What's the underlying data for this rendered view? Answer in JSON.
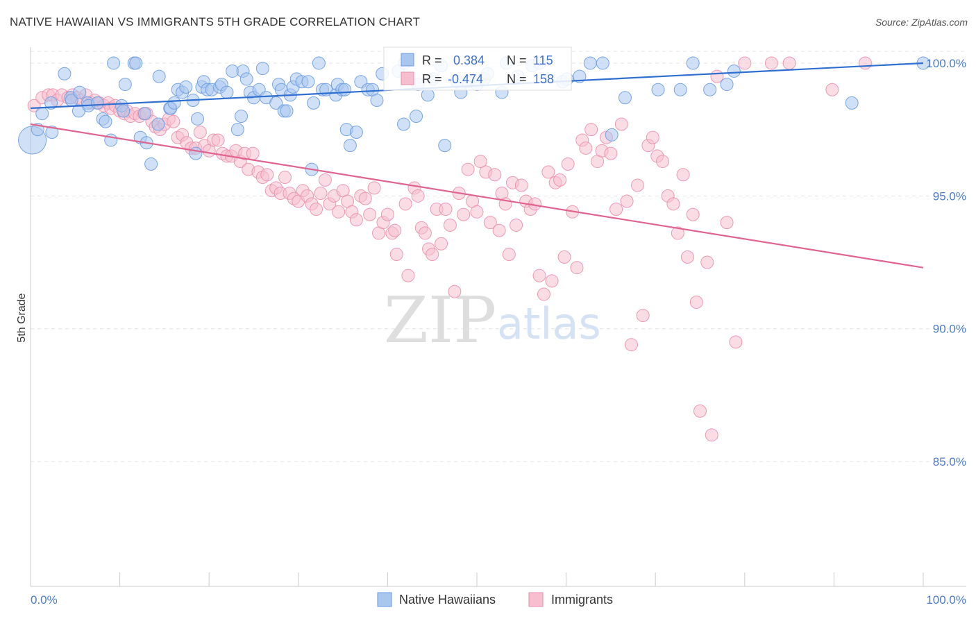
{
  "title": "NATIVE HAWAIIAN VS IMMIGRANTS 5TH GRADE CORRELATION CHART",
  "source": "Source: ZipAtlas.com",
  "watermark": {
    "part1": "ZIP",
    "part2": "atlas"
  },
  "legend_box": {
    "rows": [
      {
        "r_label": "R =",
        "r_value": "0.384",
        "n_label": "N =",
        "n_value": "115",
        "color": "#a9c6ee",
        "stroke": "#6b9be0"
      },
      {
        "r_label": "R =",
        "r_value": "-0.474",
        "n_label": "N =",
        "n_value": "158",
        "color": "#f6bfd0",
        "stroke": "#ea8fad"
      }
    ]
  },
  "bottom_legend": [
    {
      "label": "Native Hawaiians",
      "color": "#a9c6ee",
      "stroke": "#6b9be0"
    },
    {
      "label": "Immigrants",
      "color": "#f6bfd0",
      "stroke": "#ea8fad"
    }
  ],
  "chart_data": {
    "type": "scatter",
    "title": "NATIVE HAWAIIAN VS IMMIGRANTS 5TH GRADE CORRELATION CHART",
    "xlabel": "",
    "ylabel": "5th Grade",
    "xlim": [
      0,
      100
    ],
    "ylim": [
      80.3,
      100.6
    ],
    "x_tick_labels": [
      "0.0%",
      "100.0%"
    ],
    "y_ticks": [
      85,
      90,
      95,
      100
    ],
    "y_tick_labels": [
      "85.0%",
      "90.0%",
      "95.0%",
      "100.0%"
    ],
    "grid": true,
    "legend_position": "bottom",
    "series": [
      {
        "name": "Native Hawaiians",
        "color": "#6b9be0",
        "fill": "#a9c6ee",
        "R": 0.384,
        "N": 115,
        "trend": {
          "x": [
            0,
            100
          ],
          "y": [
            98.3,
            100.0
          ]
        },
        "points": [
          [
            0.2,
            97.1
          ],
          [
            0.8,
            97.5
          ],
          [
            1.3,
            98.1
          ],
          [
            2.3,
            98.5
          ],
          [
            2.4,
            97.4
          ],
          [
            3.8,
            99.6
          ],
          [
            4.5,
            98.7
          ],
          [
            4.6,
            98.6
          ],
          [
            5.4,
            98.2
          ],
          [
            5.5,
            98.9
          ],
          [
            6.4,
            98.5
          ],
          [
            6.5,
            98.4
          ],
          [
            7.5,
            98.5
          ],
          [
            8.1,
            97.9
          ],
          [
            8.4,
            97.8
          ],
          [
            9.0,
            97.1
          ],
          [
            9.3,
            100.0
          ],
          [
            10.2,
            98.4
          ],
          [
            10.4,
            98.2
          ],
          [
            10.6,
            99.2
          ],
          [
            11.6,
            100.0
          ],
          [
            11.8,
            100.0
          ],
          [
            12.3,
            97.2
          ],
          [
            12.8,
            98.1
          ],
          [
            13.0,
            97.0
          ],
          [
            13.5,
            96.2
          ],
          [
            14.3,
            97.7
          ],
          [
            14.4,
            99.5
          ],
          [
            15.6,
            98.3
          ],
          [
            15.7,
            98.3
          ],
          [
            16.1,
            98.5
          ],
          [
            16.5,
            99.0
          ],
          [
            17.0,
            98.9
          ],
          [
            17.4,
            99.1
          ],
          [
            18.2,
            98.6
          ],
          [
            18.5,
            96.6
          ],
          [
            18.7,
            97.9
          ],
          [
            19.2,
            99.1
          ],
          [
            19.4,
            99.3
          ],
          [
            19.8,
            99.0
          ],
          [
            20.3,
            99.0
          ],
          [
            21.2,
            99.1
          ],
          [
            21.4,
            99.2
          ],
          [
            22.0,
            98.9
          ],
          [
            22.6,
            99.7
          ],
          [
            23.2,
            97.5
          ],
          [
            23.6,
            98.0
          ],
          [
            23.8,
            99.7
          ],
          [
            24.2,
            99.4
          ],
          [
            24.6,
            98.9
          ],
          [
            25.0,
            98.7
          ],
          [
            25.6,
            99.0
          ],
          [
            26.0,
            99.8
          ],
          [
            26.4,
            98.7
          ],
          [
            27.5,
            98.5
          ],
          [
            27.8,
            99.2
          ],
          [
            28.1,
            99.0
          ],
          [
            28.4,
            98.2
          ],
          [
            28.7,
            98.2
          ],
          [
            29.1,
            98.8
          ],
          [
            29.4,
            99.1
          ],
          [
            29.8,
            99.4
          ],
          [
            30.4,
            99.3
          ],
          [
            31.1,
            99.3
          ],
          [
            31.5,
            96.0
          ],
          [
            31.7,
            98.5
          ],
          [
            32.3,
            100.0
          ],
          [
            32.7,
            99.0
          ],
          [
            33.1,
            99.0
          ],
          [
            34.2,
            98.8
          ],
          [
            34.4,
            99.2
          ],
          [
            34.9,
            99.0
          ],
          [
            35.2,
            99.0
          ],
          [
            35.4,
            97.5
          ],
          [
            35.8,
            96.9
          ],
          [
            36.5,
            97.4
          ],
          [
            37.0,
            99.3
          ],
          [
            37.8,
            99.0
          ],
          [
            38.3,
            99.0
          ],
          [
            38.8,
            98.6
          ],
          [
            39.4,
            99.6
          ],
          [
            41.2,
            99.7
          ],
          [
            41.8,
            97.7
          ],
          [
            41.9,
            100.0
          ],
          [
            43.2,
            98.0
          ],
          [
            43.4,
            99.2
          ],
          [
            44.5,
            98.8
          ],
          [
            45.1,
            99.4
          ],
          [
            46.0,
            99.9
          ],
          [
            46.4,
            96.9
          ],
          [
            47.8,
            99.3
          ],
          [
            48.2,
            98.9
          ],
          [
            49.0,
            99.3
          ],
          [
            50.0,
            99.2
          ],
          [
            50.8,
            99.4
          ],
          [
            51.2,
            99.6
          ],
          [
            52.8,
            98.9
          ],
          [
            53.3,
            100.0
          ],
          [
            54.6,
            99.5
          ],
          [
            56.2,
            99.9
          ],
          [
            57.0,
            100.0
          ],
          [
            59.6,
            99.3
          ],
          [
            60.1,
            99.4
          ],
          [
            61.5,
            99.5
          ],
          [
            62.7,
            100.0
          ],
          [
            64.1,
            100.0
          ],
          [
            65.1,
            97.3
          ],
          [
            66.6,
            98.7
          ],
          [
            70.3,
            99.0
          ],
          [
            72.8,
            99.0
          ],
          [
            74.2,
            100.0
          ],
          [
            76.1,
            99.0
          ],
          [
            78.0,
            99.2
          ],
          [
            78.8,
            99.7
          ],
          [
            92.0,
            98.5
          ],
          [
            100.0,
            100.0
          ]
        ]
      },
      {
        "name": "Immigrants",
        "color": "#ea8fad",
        "fill": "#f6bfd0",
        "R": -0.474,
        "N": 158,
        "trend": {
          "x": [
            0,
            100
          ],
          "y": [
            97.7,
            92.3
          ]
        },
        "points": [
          [
            0.4,
            98.4
          ],
          [
            1.3,
            98.7
          ],
          [
            2.0,
            98.8
          ],
          [
            2.5,
            98.8
          ],
          [
            3.0,
            98.6
          ],
          [
            3.5,
            98.8
          ],
          [
            4.2,
            98.7
          ],
          [
            4.7,
            98.8
          ],
          [
            5.2,
            98.7
          ],
          [
            5.7,
            98.6
          ],
          [
            6.2,
            98.8
          ],
          [
            6.8,
            98.5
          ],
          [
            7.2,
            98.6
          ],
          [
            7.7,
            98.5
          ],
          [
            8.2,
            98.4
          ],
          [
            8.7,
            98.5
          ],
          [
            9.0,
            98.3
          ],
          [
            9.5,
            98.4
          ],
          [
            10.0,
            98.2
          ],
          [
            10.5,
            98.1
          ],
          [
            10.8,
            98.2
          ],
          [
            11.2,
            98.0
          ],
          [
            11.7,
            98.1
          ],
          [
            12.2,
            98.0
          ],
          [
            12.7,
            98.1
          ],
          [
            13.0,
            98.1
          ],
          [
            13.6,
            97.8
          ],
          [
            14.0,
            97.6
          ],
          [
            14.5,
            97.5
          ],
          [
            15.0,
            97.7
          ],
          [
            15.5,
            97.9
          ],
          [
            16.0,
            97.8
          ],
          [
            16.5,
            97.2
          ],
          [
            17.0,
            97.3
          ],
          [
            17.5,
            97.0
          ],
          [
            18.0,
            96.8
          ],
          [
            18.5,
            96.8
          ],
          [
            19.0,
            97.4
          ],
          [
            19.5,
            96.9
          ],
          [
            20.0,
            96.7
          ],
          [
            20.5,
            97.1
          ],
          [
            21.0,
            97.1
          ],
          [
            21.5,
            96.6
          ],
          [
            22.0,
            96.5
          ],
          [
            22.5,
            96.5
          ],
          [
            23.0,
            96.7
          ],
          [
            23.5,
            96.3
          ],
          [
            24.0,
            96.6
          ],
          [
            24.4,
            96.0
          ],
          [
            24.9,
            96.6
          ],
          [
            25.5,
            95.9
          ],
          [
            26.0,
            95.7
          ],
          [
            26.5,
            95.8
          ],
          [
            27.0,
            95.2
          ],
          [
            27.5,
            95.3
          ],
          [
            28.0,
            95.1
          ],
          [
            28.5,
            95.7
          ],
          [
            29.0,
            95.1
          ],
          [
            29.5,
            94.9
          ],
          [
            30.0,
            94.8
          ],
          [
            30.5,
            95.2
          ],
          [
            31.0,
            95.0
          ],
          [
            31.5,
            94.7
          ],
          [
            32.0,
            94.5
          ],
          [
            32.5,
            95.1
          ],
          [
            33.0,
            95.6
          ],
          [
            33.5,
            94.7
          ],
          [
            34.0,
            95.0
          ],
          [
            34.5,
            94.4
          ],
          [
            35.0,
            95.2
          ],
          [
            35.5,
            94.8
          ],
          [
            36.0,
            94.4
          ],
          [
            36.5,
            94.1
          ],
          [
            37.0,
            95.0
          ],
          [
            37.5,
            94.9
          ],
          [
            38.0,
            94.3
          ],
          [
            38.5,
            95.3
          ],
          [
            39.0,
            93.6
          ],
          [
            39.5,
            94.0
          ],
          [
            40.0,
            94.3
          ],
          [
            40.5,
            93.6
          ],
          [
            40.8,
            93.7
          ],
          [
            41.0,
            92.8
          ],
          [
            42.0,
            94.7
          ],
          [
            42.3,
            92.0
          ],
          [
            43.0,
            95.3
          ],
          [
            43.4,
            95.0
          ],
          [
            43.8,
            93.8
          ],
          [
            44.2,
            93.6
          ],
          [
            44.6,
            93.0
          ],
          [
            45.0,
            92.8
          ],
          [
            45.5,
            94.5
          ],
          [
            46.0,
            93.2
          ],
          [
            46.5,
            94.5
          ],
          [
            47.0,
            93.9
          ],
          [
            47.5,
            91.4
          ],
          [
            48.0,
            95.1
          ],
          [
            48.5,
            94.3
          ],
          [
            49.0,
            96.0
          ],
          [
            49.5,
            94.8
          ],
          [
            50.0,
            94.4
          ],
          [
            50.4,
            96.3
          ],
          [
            51.0,
            95.9
          ],
          [
            51.5,
            94.0
          ],
          [
            52.0,
            95.8
          ],
          [
            52.5,
            93.7
          ],
          [
            52.8,
            95.1
          ],
          [
            53.2,
            94.7
          ],
          [
            53.6,
            92.8
          ],
          [
            54.0,
            95.5
          ],
          [
            54.4,
            93.9
          ],
          [
            55.0,
            95.4
          ],
          [
            55.5,
            94.8
          ],
          [
            56.0,
            94.5
          ],
          [
            56.5,
            94.7
          ],
          [
            57.0,
            92.0
          ],
          [
            57.5,
            91.3
          ],
          [
            58.0,
            95.9
          ],
          [
            58.4,
            91.8
          ],
          [
            58.8,
            95.5
          ],
          [
            59.3,
            95.6
          ],
          [
            59.8,
            92.7
          ],
          [
            60.2,
            96.2
          ],
          [
            60.7,
            94.4
          ],
          [
            61.2,
            92.3
          ],
          [
            61.8,
            97.1
          ],
          [
            62.2,
            96.8
          ],
          [
            62.8,
            97.5
          ],
          [
            63.5,
            96.3
          ],
          [
            64.0,
            96.7
          ],
          [
            64.5,
            97.2
          ],
          [
            65.0,
            96.6
          ],
          [
            65.6,
            94.5
          ],
          [
            66.2,
            97.7
          ],
          [
            66.8,
            94.8
          ],
          [
            67.3,
            89.4
          ],
          [
            68.0,
            95.4
          ],
          [
            68.6,
            90.5
          ],
          [
            69.2,
            96.9
          ],
          [
            69.7,
            97.2
          ],
          [
            70.2,
            96.5
          ],
          [
            70.8,
            96.3
          ],
          [
            71.4,
            95.0
          ],
          [
            72.0,
            94.7
          ],
          [
            72.5,
            93.6
          ],
          [
            73.1,
            95.8
          ],
          [
            73.6,
            92.7
          ],
          [
            74.2,
            94.3
          ],
          [
            74.6,
            91.0
          ],
          [
            75.0,
            86.9
          ],
          [
            75.8,
            92.5
          ],
          [
            76.3,
            86.0
          ],
          [
            76.9,
            99.5
          ],
          [
            78.0,
            94.0
          ],
          [
            79.0,
            89.5
          ],
          [
            80.0,
            100.0
          ],
          [
            83.0,
            100.0
          ],
          [
            85.0,
            100.0
          ],
          [
            89.8,
            99.0
          ],
          [
            93.5,
            100.0
          ]
        ]
      }
    ]
  }
}
